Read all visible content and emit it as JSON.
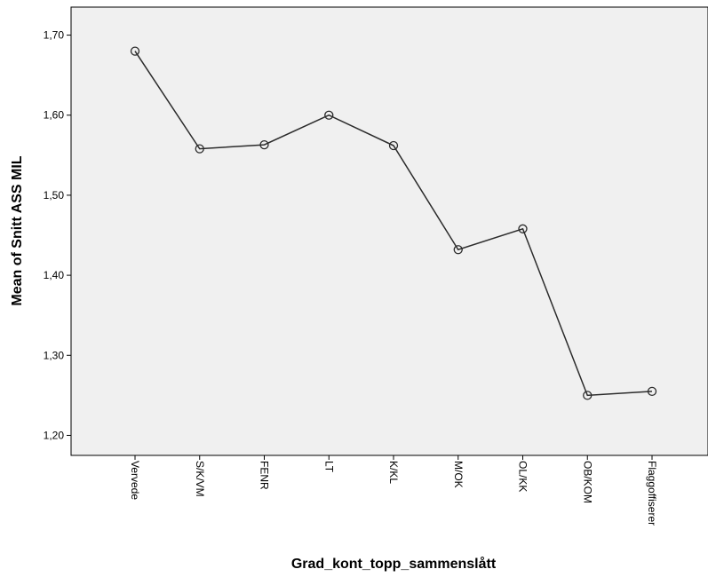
{
  "chart_data": {
    "type": "line",
    "title": "",
    "xlabel": "Grad_kont_topp_sammenslått",
    "ylabel": "Mean of Snitt ASS MIL",
    "categories": [
      "Vervede",
      "S/K/VM",
      "FENR",
      "LT",
      "K/KL",
      "M/OK",
      "OL/KK",
      "OB/KOM",
      "Flaggoffiserer"
    ],
    "series": [
      {
        "values": [
          1.68,
          1.558,
          1.563,
          1.6,
          1.562,
          1.432,
          1.458,
          1.25,
          1.255
        ]
      }
    ],
    "ylim": [
      1.175,
      1.735
    ],
    "yticks": [
      "1,20",
      "1,30",
      "1,40",
      "1,50",
      "1,60",
      "1,70"
    ],
    "ytick_values": [
      1.2,
      1.3,
      1.4,
      1.5,
      1.6,
      1.7
    ],
    "markers": "open-circle",
    "grid": false,
    "legend": "none",
    "colors": {
      "plot_background": "#f0f0f0",
      "line": "#2b2b2b",
      "axis": "#000000"
    }
  }
}
